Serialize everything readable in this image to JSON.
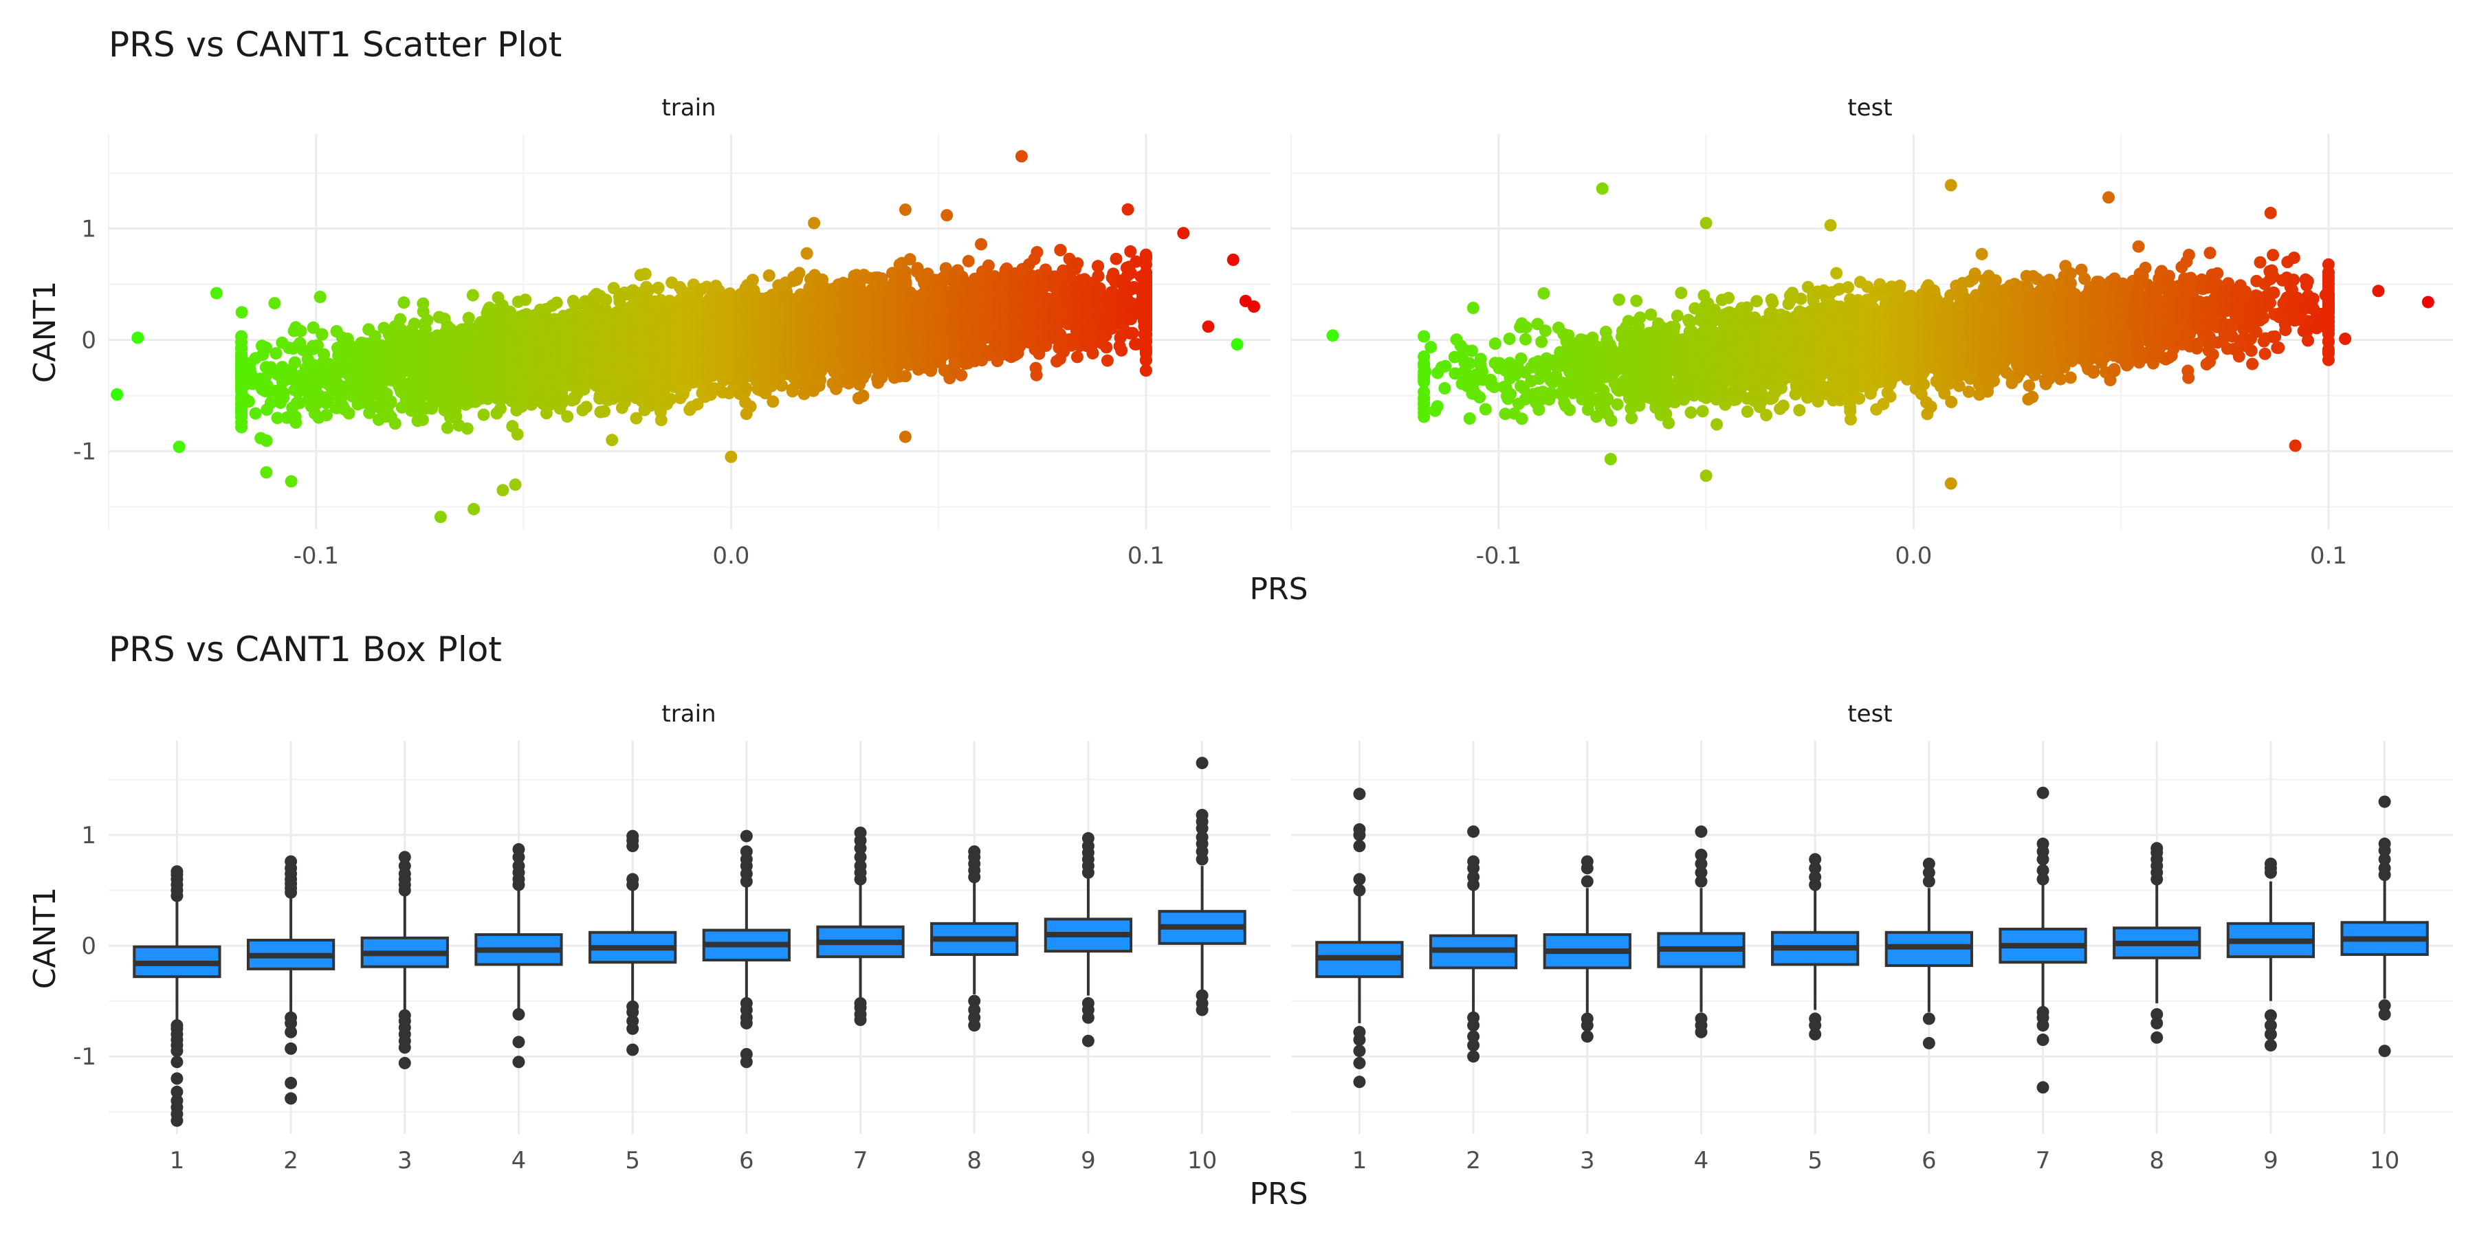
{
  "chart_data": [
    {
      "type": "scatter",
      "title": "PRS vs CANT1 Scatter Plot",
      "xlabel": "PRS",
      "ylabel": "CANT1",
      "facets": [
        "train",
        "test"
      ],
      "xlim": [
        -0.15,
        0.13
      ],
      "ylim": [
        -1.7,
        1.85
      ],
      "x_ticks": [
        "-0.1",
        "0.0",
        "0.1"
      ],
      "x_tick_values": [
        -0.1,
        0.0,
        0.1
      ],
      "y_ticks": [
        "-1",
        "0",
        "1"
      ],
      "y_tick_values": [
        -1,
        0,
        1
      ],
      "grid": true,
      "color_scale": {
        "low": "#33ff00",
        "mid": "#c8b400",
        "high": "#ee0000",
        "by": "PRS"
      },
      "trend": {
        "slope": 3.3,
        "intercept": 0.0,
        "sd": 0.2
      },
      "point_count": {
        "train": 9000,
        "test": 4500
      },
      "x_spread": {
        "train": 0.05,
        "test": 0.045
      },
      "notable_points": {
        "train": [
          [
            -0.148,
            -0.49
          ],
          [
            -0.143,
            0.02
          ],
          [
            -0.133,
            -0.96
          ],
          [
            -0.124,
            0.42
          ],
          [
            -0.11,
            0.33
          ],
          [
            -0.112,
            -1.19
          ],
          [
            -0.106,
            -1.27
          ],
          [
            -0.07,
            -1.59
          ],
          [
            -0.062,
            -1.52
          ],
          [
            -0.055,
            -1.35
          ],
          [
            -0.052,
            -1.3
          ],
          [
            0.0,
            -1.05
          ],
          [
            0.042,
            -0.87
          ],
          [
            0.07,
            1.65
          ],
          [
            0.042,
            1.17
          ],
          [
            0.052,
            1.12
          ],
          [
            0.109,
            0.96
          ],
          [
            0.121,
            0.72
          ],
          [
            0.126,
            0.3
          ],
          [
            0.124,
            0.35
          ],
          [
            0.115,
            0.12
          ],
          [
            0.02,
            1.05
          ]
        ],
        "test": [
          [
            -0.163,
            -0.04
          ],
          [
            -0.14,
            0.04
          ],
          [
            -0.075,
            1.36
          ],
          [
            -0.073,
            -1.07
          ],
          [
            -0.05,
            1.05
          ],
          [
            -0.05,
            -1.22
          ],
          [
            -0.02,
            1.03
          ],
          [
            0.009,
            1.39
          ],
          [
            0.009,
            -1.29
          ],
          [
            0.047,
            1.28
          ],
          [
            0.092,
            -0.95
          ],
          [
            0.112,
            0.44
          ],
          [
            0.124,
            0.34
          ],
          [
            0.104,
            0.01
          ],
          [
            0.09,
            0.38
          ]
        ]
      }
    },
    {
      "type": "box",
      "title": "PRS vs CANT1 Box Plot",
      "xlabel": "PRS",
      "ylabel": "CANT1",
      "facets": [
        "train",
        "test"
      ],
      "categories": [
        "1",
        "2",
        "3",
        "4",
        "5",
        "6",
        "7",
        "8",
        "9",
        "10"
      ],
      "ylim": [
        -1.7,
        1.85
      ],
      "y_ticks": [
        "-1",
        "0",
        "1"
      ],
      "y_tick_values": [
        -1,
        0,
        1
      ],
      "grid": true,
      "box_color": "#1e90ff",
      "series": [
        {
          "facet": "train",
          "q1": [
            -0.28,
            -0.21,
            -0.19,
            -0.17,
            -0.15,
            -0.13,
            -0.1,
            -0.08,
            -0.05,
            0.02
          ],
          "median": [
            -0.16,
            -0.09,
            -0.07,
            -0.04,
            -0.02,
            0.01,
            0.03,
            0.06,
            0.1,
            0.17
          ],
          "q3": [
            -0.01,
            0.05,
            0.07,
            0.1,
            0.12,
            0.14,
            0.17,
            0.2,
            0.24,
            0.31
          ],
          "whisker_low": [
            -0.68,
            -0.6,
            -0.58,
            -0.57,
            -0.51,
            -0.5,
            -0.48,
            -0.44,
            -0.45,
            -0.4
          ],
          "whisker_high": [
            0.4,
            0.43,
            0.48,
            0.5,
            0.52,
            0.53,
            0.56,
            0.6,
            0.65,
            0.72
          ],
          "outliers": [
            [
              -1.58,
              -1.52,
              -1.46,
              -1.4,
              -1.32,
              -1.2,
              -1.05,
              -0.95,
              -0.9,
              -0.85,
              -0.8,
              -0.75,
              -0.72,
              0.45,
              0.5,
              0.55,
              0.6,
              0.64,
              0.67
            ],
            [
              -1.38,
              -1.24,
              -0.93,
              -0.78,
              -0.7,
              -0.65,
              0.48,
              0.52,
              0.56,
              0.6,
              0.65,
              0.7,
              0.76
            ],
            [
              -1.06,
              -0.92,
              -0.86,
              -0.8,
              -0.74,
              -0.68,
              -0.63,
              0.5,
              0.55,
              0.6,
              0.65,
              0.72,
              0.8
            ],
            [
              -1.05,
              -0.87,
              -0.62,
              0.55,
              0.6,
              0.66,
              0.72,
              0.8,
              0.87
            ],
            [
              -0.94,
              -0.75,
              -0.68,
              -0.6,
              -0.55,
              0.55,
              0.6,
              0.9,
              0.95,
              0.99
            ],
            [
              -1.05,
              -0.98,
              -0.7,
              -0.65,
              -0.58,
              -0.52,
              0.58,
              0.65,
              0.72,
              0.78,
              0.85,
              0.99
            ],
            [
              -0.67,
              -0.62,
              -0.56,
              -0.52,
              0.6,
              0.66,
              0.72,
              0.8,
              0.88,
              0.95,
              1.02
            ],
            [
              -0.72,
              -0.65,
              -0.58,
              -0.5,
              0.62,
              0.68,
              0.74,
              0.8,
              0.85
            ],
            [
              -0.86,
              -0.65,
              -0.58,
              -0.52,
              0.66,
              0.72,
              0.78,
              0.84,
              0.9,
              0.97
            ],
            [
              -0.58,
              -0.52,
              -0.45,
              0.78,
              0.85,
              0.92,
              0.98,
              1.06,
              1.12,
              1.18,
              1.65
            ]
          ]
        },
        {
          "facet": "test",
          "q1": [
            -0.28,
            -0.2,
            -0.2,
            -0.19,
            -0.17,
            -0.18,
            -0.15,
            -0.11,
            -0.1,
            -0.08
          ],
          "median": [
            -0.11,
            -0.04,
            -0.05,
            -0.03,
            -0.02,
            -0.01,
            0.0,
            0.02,
            0.04,
            0.06
          ],
          "q3": [
            0.03,
            0.09,
            0.1,
            0.11,
            0.12,
            0.12,
            0.15,
            0.16,
            0.2,
            0.21
          ],
          "whisker_low": [
            -0.7,
            -0.62,
            -0.62,
            -0.6,
            -0.58,
            -0.6,
            -0.55,
            -0.52,
            -0.5,
            -0.48
          ],
          "whisker_high": [
            0.45,
            0.5,
            0.52,
            0.52,
            0.5,
            0.52,
            0.55,
            0.55,
            0.58,
            0.6
          ],
          "outliers": [
            [
              -1.23,
              -1.06,
              -0.95,
              -0.85,
              -0.78,
              0.5,
              0.6,
              0.9,
              1.0,
              1.05,
              1.37
            ],
            [
              -1.0,
              -0.9,
              -0.82,
              -0.72,
              -0.65,
              0.55,
              0.62,
              0.7,
              0.76,
              1.03
            ],
            [
              -0.82,
              -0.72,
              -0.66,
              0.58,
              0.7,
              0.76
            ],
            [
              -0.78,
              -0.72,
              -0.66,
              0.58,
              0.66,
              0.74,
              0.82,
              1.03
            ],
            [
              -0.8,
              -0.72,
              -0.66,
              0.55,
              0.62,
              0.7,
              0.78
            ],
            [
              -0.88,
              -0.66,
              0.58,
              0.66,
              0.74
            ],
            [
              -1.28,
              -0.85,
              -0.72,
              -0.65,
              -0.6,
              0.6,
              0.68,
              0.78,
              0.85,
              0.92,
              1.38
            ],
            [
              -0.83,
              -0.7,
              -0.62,
              0.6,
              0.66,
              0.72,
              0.78,
              0.84,
              0.88
            ],
            [
              -0.9,
              -0.8,
              -0.72,
              -0.63,
              0.66,
              0.7,
              0.74
            ],
            [
              -0.95,
              -0.62,
              -0.54,
              0.64,
              0.7,
              0.78,
              0.86,
              0.92,
              1.3
            ]
          ]
        }
      ]
    }
  ]
}
